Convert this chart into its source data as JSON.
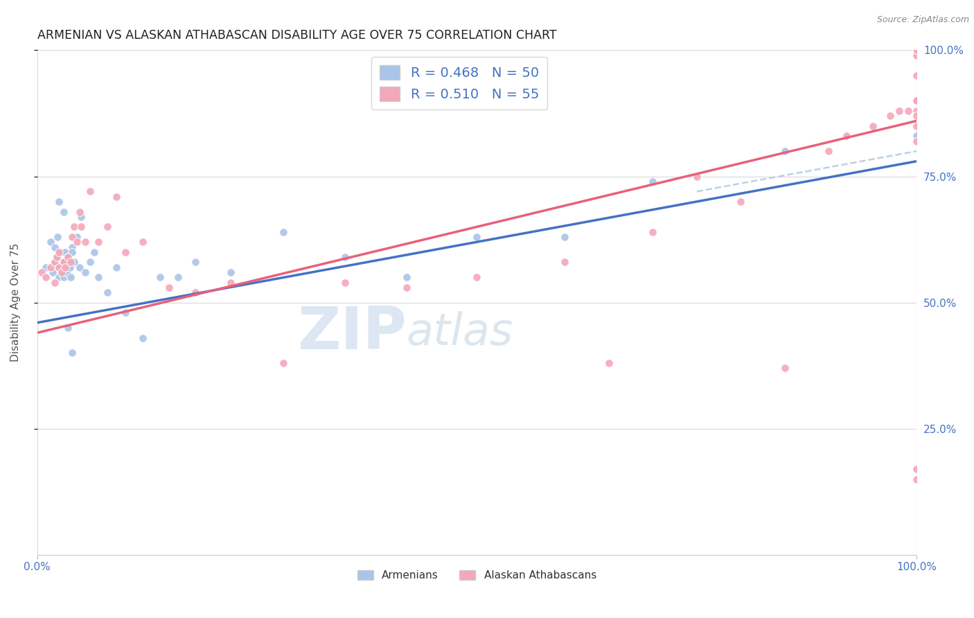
{
  "title": "ARMENIAN VS ALASKAN ATHABASCAN DISABILITY AGE OVER 75 CORRELATION CHART",
  "source": "Source: ZipAtlas.com",
  "ylabel": "Disability Age Over 75",
  "armenian_R": 0.468,
  "armenian_N": 50,
  "alaskan_R": 0.51,
  "alaskan_N": 55,
  "armenian_color": "#aac4e8",
  "alaskan_color": "#f4a7b9",
  "armenian_line_color": "#4472c4",
  "alaskan_line_color": "#e8607a",
  "dashed_line_color": "#b0c8e0",
  "watermark_zip": "ZIP",
  "watermark_atlas": "atlas",
  "watermark_color_zip": "#c5d8ec",
  "watermark_color_atlas": "#b8cfe0",
  "background_color": "#ffffff",
  "grid_color": "#d8d8d8",
  "tick_color": "#4472c4",
  "ylabel_color": "#555555",
  "title_color": "#222222",
  "source_color": "#888888",
  "legend_label_color": "#4472c4",
  "bottom_legend_color": "#333333",
  "armenian_x": [
    1.0,
    1.5,
    1.8,
    2.0,
    2.0,
    2.2,
    2.3,
    2.5,
    2.5,
    2.7,
    2.8,
    3.0,
    3.0,
    3.0,
    3.2,
    3.3,
    3.5,
    3.5,
    3.7,
    3.8,
    4.0,
    4.0,
    4.2,
    4.5,
    4.8,
    5.0,
    5.5,
    6.0,
    6.5,
    7.0,
    8.0,
    9.0,
    10.0,
    12.0,
    14.0,
    16.0,
    18.0,
    22.0,
    28.0,
    35.0,
    42.0,
    50.0,
    60.0,
    70.0,
    85.0,
    100.0,
    2.5,
    3.0,
    3.5,
    4.0
  ],
  "armenian_y": [
    57.0,
    62.0,
    56.0,
    58.0,
    61.0,
    59.0,
    63.0,
    57.0,
    55.0,
    60.0,
    56.0,
    58.0,
    55.0,
    57.0,
    60.0,
    56.0,
    58.0,
    59.0,
    57.0,
    55.0,
    61.0,
    60.0,
    58.0,
    63.0,
    57.0,
    67.0,
    56.0,
    58.0,
    60.0,
    55.0,
    52.0,
    57.0,
    48.0,
    43.0,
    55.0,
    55.0,
    58.0,
    56.0,
    64.0,
    59.0,
    55.0,
    63.0,
    63.0,
    74.0,
    80.0,
    83.0,
    70.0,
    68.0,
    45.0,
    40.0
  ],
  "alaskan_x": [
    0.5,
    1.0,
    1.5,
    2.0,
    2.0,
    2.2,
    2.5,
    2.5,
    2.8,
    3.0,
    3.2,
    3.5,
    3.8,
    4.0,
    4.2,
    4.5,
    4.8,
    5.0,
    5.5,
    6.0,
    7.0,
    8.0,
    9.0,
    10.0,
    12.0,
    15.0,
    18.0,
    22.0,
    28.0,
    35.0,
    42.0,
    50.0,
    60.0,
    65.0,
    70.0,
    75.0,
    80.0,
    85.0,
    90.0,
    92.0,
    95.0,
    97.0,
    98.0,
    99.0,
    100.0,
    100.0,
    100.0,
    100.0,
    100.0,
    100.0,
    100.0,
    100.0,
    100.0,
    100.0,
    100.0
  ],
  "alaskan_y": [
    56.0,
    55.0,
    57.0,
    54.0,
    58.0,
    59.0,
    57.0,
    60.0,
    56.0,
    58.0,
    57.0,
    59.0,
    58.0,
    63.0,
    65.0,
    62.0,
    68.0,
    65.0,
    62.0,
    72.0,
    62.0,
    65.0,
    71.0,
    60.0,
    62.0,
    53.0,
    52.0,
    54.0,
    38.0,
    54.0,
    53.0,
    55.0,
    58.0,
    38.0,
    64.0,
    75.0,
    70.0,
    37.0,
    80.0,
    83.0,
    85.0,
    87.0,
    88.0,
    88.0,
    88.0,
    90.0,
    95.0,
    99.0,
    100.0,
    17.0,
    15.0,
    82.0,
    85.0,
    87.0,
    90.0
  ],
  "xlim": [
    0,
    100
  ],
  "ylim": [
    0,
    100
  ],
  "xticks": [
    0,
    100
  ],
  "xticklabels": [
    "0.0%",
    "100.0%"
  ],
  "yticks_right": [
    25,
    50,
    75,
    100
  ],
  "yticklabels_right": [
    "25.0%",
    "50.0%",
    "75.0%",
    "100.0%"
  ],
  "blue_trend_start_x": 0,
  "blue_trend_start_y": 46,
  "blue_trend_end_x": 100,
  "blue_trend_end_y": 78,
  "pink_trend_start_x": 0,
  "pink_trend_start_y": 44,
  "pink_trend_end_x": 100,
  "pink_trend_end_y": 86,
  "dashed_start_x": 75,
  "dashed_start_y": 72,
  "dashed_end_x": 100,
  "dashed_end_y": 80
}
